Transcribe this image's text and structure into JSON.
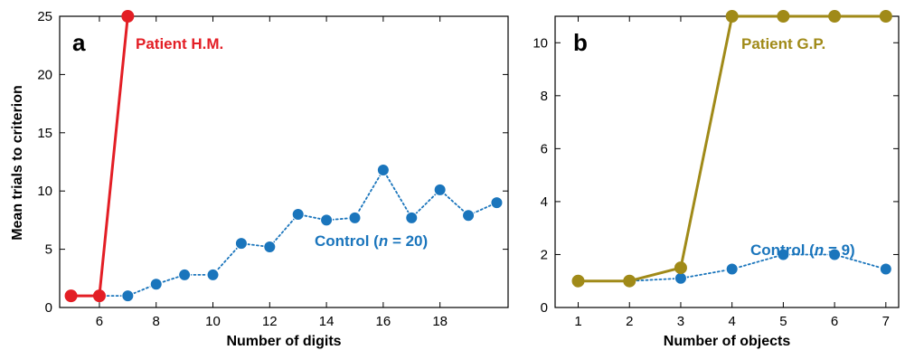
{
  "chart_data": [
    {
      "type": "line",
      "panel_label": "a",
      "xlabel": "Number of digits",
      "ylabel": "Mean trials to criterion",
      "xlim": [
        4.6,
        20.4
      ],
      "ylim": [
        0,
        25
      ],
      "xticks": [
        6,
        8,
        10,
        12,
        14,
        16,
        18
      ],
      "yticks": [
        0,
        5,
        10,
        15,
        20,
        25
      ],
      "grid": false,
      "series": [
        {
          "name": "Patient H.M.",
          "color": "#e31e25",
          "style": "solid",
          "x": [
            5,
            6,
            7
          ],
          "y": [
            1,
            1,
            25
          ]
        },
        {
          "name": "Control",
          "name_prefix": "Control (",
          "name_italic": "n",
          "name_suffix": " = 20)",
          "color": "#1a75bc",
          "style": "dotted",
          "x": [
            5,
            6,
            7,
            8,
            9,
            10,
            11,
            12,
            13,
            14,
            15,
            16,
            17,
            18,
            19,
            20
          ],
          "y": [
            1,
            1,
            1,
            2,
            2.8,
            2.8,
            5.5,
            5.2,
            8,
            7.5,
            7.7,
            11.8,
            7.7,
            10.1,
            7.9,
            9
          ]
        }
      ]
    },
    {
      "type": "line",
      "panel_label": "b",
      "xlabel": "Number of objects",
      "ylabel": "",
      "xlim": [
        0.55,
        7.25
      ],
      "ylim": [
        0,
        11
      ],
      "xticks": [
        1,
        2,
        3,
        4,
        5,
        6,
        7
      ],
      "yticks": [
        0,
        2,
        4,
        6,
        8,
        10
      ],
      "grid": false,
      "series": [
        {
          "name": "Patient G.P.",
          "color": "#a08a18",
          "style": "solid",
          "x": [
            1,
            2,
            3,
            4,
            5,
            6,
            7
          ],
          "y": [
            1,
            1,
            1.5,
            11,
            11,
            11,
            11
          ]
        },
        {
          "name": "Control",
          "name_prefix": "Control (",
          "name_italic": "n",
          "name_suffix": " = 9)",
          "color": "#1a75bc",
          "style": "dotted",
          "x": [
            1,
            2,
            3,
            4,
            5,
            6,
            7
          ],
          "y": [
            1,
            1,
            1.1,
            1.45,
            2,
            2,
            1.45
          ]
        }
      ]
    }
  ]
}
